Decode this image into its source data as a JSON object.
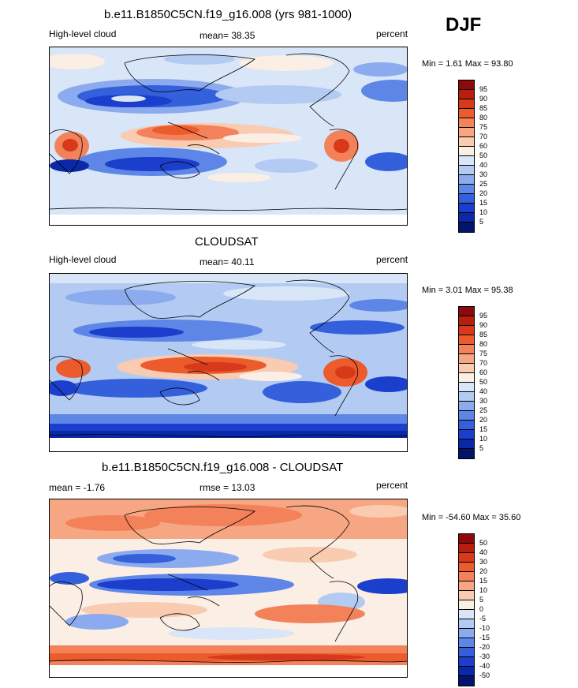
{
  "season": "DJF",
  "units": "percent",
  "panels": [
    {
      "id": "model",
      "title": "b.e11.B1850C5CN.f19_g16.008 (yrs 981-1000)",
      "left_label": "High-level cloud",
      "center_label": "mean=  38.35",
      "right_label": "percent",
      "minmax": "Min =   1.61 Max =  93.80",
      "legend_levels": [
        "95",
        "90",
        "85",
        "80",
        "75",
        "70",
        "60",
        "50",
        "40",
        "30",
        "25",
        "20",
        "15",
        "10",
        "5"
      ],
      "legend_colors": [
        "#8c0a0a",
        "#b81e0c",
        "#d8391a",
        "#ec5b2c",
        "#f3825a",
        "#f6a682",
        "#f9cbb0",
        "#fbeee5",
        "#d8e6f8",
        "#b3cbf2",
        "#8cabee",
        "#5d86e6",
        "#3560dc",
        "#1b3fcc",
        "#0a28a8",
        "#05146b"
      ]
    },
    {
      "id": "obs",
      "title": "CLOUDSAT",
      "left_label": "High-level cloud",
      "center_label": "mean=  40.11",
      "right_label": "percent",
      "minmax": "Min =   3.01 Max =  95.38",
      "legend_levels": [
        "95",
        "90",
        "85",
        "80",
        "75",
        "70",
        "60",
        "50",
        "40",
        "30",
        "25",
        "20",
        "15",
        "10",
        "5"
      ],
      "legend_colors": [
        "#8c0a0a",
        "#b81e0c",
        "#d8391a",
        "#ec5b2c",
        "#f3825a",
        "#f6a682",
        "#f9cbb0",
        "#fbeee5",
        "#d8e6f8",
        "#b3cbf2",
        "#8cabee",
        "#5d86e6",
        "#3560dc",
        "#1b3fcc",
        "#0a28a8",
        "#05146b"
      ]
    },
    {
      "id": "diff",
      "title": "b.e11.B1850C5CN.f19_g16.008 - CLOUDSAT",
      "left_label": "mean =  -1.76",
      "center_label": "rmse =  13.03",
      "right_label": "percent",
      "minmax": "Min = -54.60 Max =  35.60",
      "legend_levels": [
        "50",
        "40",
        "30",
        "20",
        "15",
        "10",
        "5",
        "0",
        "-5",
        "-10",
        "-15",
        "-20",
        "-30",
        "-40",
        "-50"
      ],
      "legend_colors": [
        "#8c0a0a",
        "#b81e0c",
        "#d8391a",
        "#ec5b2c",
        "#f3825a",
        "#f6a682",
        "#f9cbb0",
        "#fbeee5",
        "#d8e6f8",
        "#b3cbf2",
        "#8cabee",
        "#5d86e6",
        "#3560dc",
        "#1b3fcc",
        "#0a28a8",
        "#05146b"
      ]
    }
  ],
  "palette": {
    "deep_red": "#8c0a0a",
    "pale": "#fbeee5",
    "light_blue": "#d8e6f8",
    "deep_blue": "#05146b"
  }
}
